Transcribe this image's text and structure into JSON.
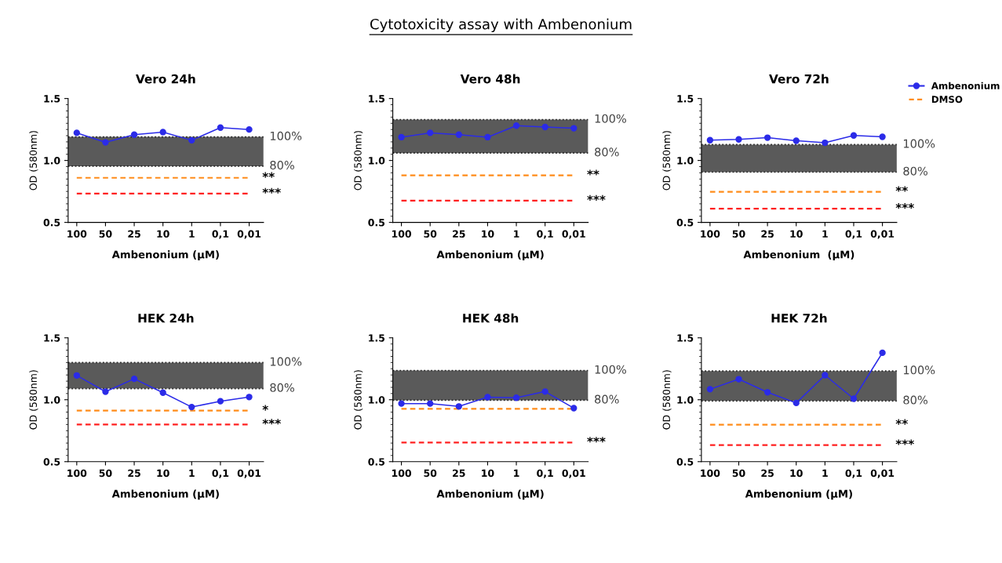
{
  "chart_data": [
    {
      "type": "line",
      "title": "Vero 24h",
      "xlabel": "Ambenonium (µM)",
      "ylabel": "OD (580nm)",
      "categories": [
        "100",
        "50",
        "25",
        "10",
        "1",
        "0,1",
        "0,01"
      ],
      "ylim": [
        0.5,
        1.5
      ],
      "yticks": [
        {
          "value": 0.5,
          "label": "0.5"
        },
        {
          "value": 1.0,
          "label": "1.0"
        },
        {
          "value": 1.5,
          "label": "1.5"
        }
      ],
      "marker": "circle",
      "series": [
        {
          "color": "#2b2be8",
          "values": [
            1.223,
            1.146,
            1.208,
            1.229,
            1.163,
            1.265,
            1.25
          ]
        },
        {
          "type": "line",
          "color": "#ff8c1a",
          "line_style": "dashed",
          "marker": "none",
          "values": [
            0.86,
            0.86,
            0.86,
            0.86,
            0.86,
            0.86,
            0.86
          ]
        },
        {
          "type": "line",
          "color": "#ff2020",
          "line_style": "dashed",
          "marker": "none",
          "values": [
            0.733,
            0.733,
            0.733,
            0.733,
            0.733,
            0.733,
            0.733
          ]
        }
      ],
      "bands": [
        {
          "axis": "y",
          "from": 0.954,
          "to": 1.19,
          "color": "#5a5a5a"
        }
      ],
      "ref_lines": [
        {
          "axis": "y",
          "value": 1.19,
          "color": "#222222",
          "line_style": "dotted"
        },
        {
          "axis": "y",
          "value": 0.954,
          "color": "#222222",
          "line_style": "dotted"
        }
      ],
      "annotations": [
        "Cytotoxicity assay with Ambenonium",
        "100%",
        "80%",
        {
          "text": "**",
          "x": "0,01",
          "y": 0.86
        },
        {
          "text": "***",
          "x": "0,01",
          "y": 0.733
        }
      ]
    },
    {
      "type": "line",
      "title": "Vero 48h",
      "xlabel": "Ambenonium (µM)",
      "ylabel": "OD (580nm)",
      "categories": [
        "100",
        "50",
        "25",
        "10",
        "1",
        "0,1",
        "0,01"
      ],
      "ylim": [
        0.5,
        1.5
      ],
      "yticks": [
        {
          "value": 0.5,
          "label": "0.5"
        },
        {
          "value": 1.0,
          "label": "1.0"
        },
        {
          "value": 1.5,
          "label": "1.5"
        }
      ],
      "marker": "circle",
      "series": [
        {
          "color": "#2b2be8",
          "values": [
            1.188,
            1.223,
            1.208,
            1.188,
            1.281,
            1.27,
            1.26
          ]
        },
        {
          "type": "line",
          "color": "#ff8c1a",
          "line_style": "dashed",
          "marker": "none",
          "values": [
            0.88,
            0.88,
            0.88,
            0.88,
            0.88,
            0.88,
            0.88
          ]
        },
        {
          "type": "line",
          "color": "#ff2020",
          "line_style": "dashed",
          "marker": "none",
          "values": [
            0.675,
            0.675,
            0.675,
            0.675,
            0.675,
            0.675,
            0.675
          ]
        }
      ],
      "bands": [
        {
          "axis": "y",
          "from": 1.06,
          "to": 1.33,
          "color": "#5a5a5a"
        }
      ],
      "ref_lines": [
        {
          "axis": "y",
          "value": 1.33,
          "color": "#222222",
          "line_style": "dotted"
        },
        {
          "axis": "y",
          "value": 1.06,
          "color": "#222222",
          "line_style": "dotted"
        }
      ],
      "annotations": [
        "100%",
        "80%",
        {
          "text": "**",
          "x": "0,01",
          "y": 0.88
        },
        {
          "text": "***",
          "x": "0,01",
          "y": 0.675
        }
      ]
    },
    {
      "type": "line",
      "title": "Vero 72h",
      "xlabel": "Ambenonium  (µM)",
      "ylabel": "OD (580nm)",
      "categories": [
        "100",
        "50",
        "25",
        "10",
        "1",
        "0,1",
        "0,01"
      ],
      "ylim": [
        0.5,
        1.5
      ],
      "yticks": [
        {
          "value": 0.5,
          "label": "0.5"
        },
        {
          "value": 1.0,
          "label": "1.0"
        },
        {
          "value": 1.5,
          "label": "1.5"
        }
      ],
      "marker": "circle",
      "legend": "right",
      "series": [
        {
          "name": "Ambenonium",
          "color": "#2b2be8",
          "values": [
            1.164,
            1.17,
            1.184,
            1.159,
            1.143,
            1.202,
            1.191
          ]
        },
        {
          "type": "line",
          "color": "#ff2020",
          "line_style": "dashed",
          "marker": "none",
          "values": [
            0.61,
            0.61,
            0.61,
            0.61,
            0.61,
            0.61,
            0.61
          ]
        },
        {
          "name": "DMSO",
          "type": "line",
          "color": "#ff8c1a",
          "line_style": "dashed",
          "marker": "none",
          "values": [
            0.747,
            0.747,
            0.747,
            0.747,
            0.747,
            0.747,
            0.747
          ]
        }
      ],
      "bands": [
        {
          "axis": "y",
          "from": 0.906,
          "to": 1.128,
          "color": "#5a5a5a"
        }
      ],
      "ref_lines": [
        {
          "axis": "y",
          "value": 1.128,
          "color": "#222222",
          "line_style": "dotted"
        },
        {
          "axis": "y",
          "value": 0.906,
          "color": "#222222",
          "line_style": "dotted"
        }
      ],
      "annotations": [
        "100%",
        "80%",
        {
          "text": "**",
          "x": "0,01",
          "y": 0.747
        },
        {
          "text": "***",
          "x": "0,01",
          "y": 0.61
        }
      ]
    },
    {
      "type": "line",
      "title": "HEK 24h",
      "xlabel": "Ambenonium (µM)",
      "ylabel": "OD (580nm)",
      "categories": [
        "100",
        "50",
        "25",
        "10",
        "1",
        "0,1",
        "0,01"
      ],
      "ylim": [
        0.5,
        1.5
      ],
      "yticks": [
        {
          "value": 0.5,
          "label": "0.5"
        },
        {
          "value": 1.0,
          "label": "1.0"
        },
        {
          "value": 1.5,
          "label": "1.5"
        }
      ],
      "marker": "circle",
      "series": [
        {
          "color": "#2b2be8",
          "values": [
            1.196,
            1.065,
            1.169,
            1.057,
            0.941,
            0.988,
            1.022
          ]
        },
        {
          "type": "line",
          "color": "#ff8c1a",
          "line_style": "dashed",
          "marker": "none",
          "values": [
            0.912,
            0.912,
            0.912,
            0.912,
            0.912,
            0.912,
            0.912
          ]
        },
        {
          "type": "line",
          "color": "#ff2020",
          "line_style": "dashed",
          "marker": "none",
          "values": [
            0.8,
            0.8,
            0.8,
            0.8,
            0.8,
            0.8,
            0.8
          ]
        }
      ],
      "bands": [
        {
          "axis": "y",
          "from": 1.09,
          "to": 1.3,
          "color": "#5a5a5a"
        }
      ],
      "ref_lines": [
        {
          "axis": "y",
          "value": 1.3,
          "color": "#222222",
          "line_style": "dotted"
        },
        {
          "axis": "y",
          "value": 1.09,
          "color": "#222222",
          "line_style": "dotted"
        }
      ],
      "annotations": [
        "100%",
        "80%",
        {
          "text": "*",
          "x": "0,01",
          "y": 0.912
        },
        {
          "text": "***",
          "x": "0,01",
          "y": 0.8
        }
      ]
    },
    {
      "type": "line",
      "title": "HEK 48h",
      "xlabel": "Ambenonium (µM)",
      "ylabel": "OD (580nm)",
      "categories": [
        "100",
        "50",
        "25",
        "10",
        "1",
        "0,1",
        "0,01"
      ],
      "ylim": [
        0.5,
        1.5
      ],
      "yticks": [
        {
          "value": 0.5,
          "label": "0.5"
        },
        {
          "value": 1.0,
          "label": "1.0"
        },
        {
          "value": 1.5,
          "label": "1.5"
        }
      ],
      "marker": "circle",
      "series": [
        {
          "color": "#2b2be8",
          "values": [
            0.969,
            0.969,
            0.946,
            1.021,
            1.016,
            1.066,
            0.932
          ]
        },
        {
          "type": "line",
          "color": "#ff8c1a",
          "line_style": "dashed",
          "marker": "none",
          "values": [
            0.926,
            0.926,
            0.926,
            0.926,
            0.926,
            0.926,
            0.926
          ]
        },
        {
          "type": "line",
          "color": "#ff2020",
          "line_style": "dashed",
          "marker": "none",
          "values": [
            0.655,
            0.655,
            0.655,
            0.655,
            0.655,
            0.655,
            0.655
          ]
        }
      ],
      "bands": [
        {
          "axis": "y",
          "from": 0.996,
          "to": 1.236,
          "color": "#5a5a5a"
        }
      ],
      "ref_lines": [
        {
          "axis": "y",
          "value": 1.236,
          "color": "#222222",
          "line_style": "dotted"
        },
        {
          "axis": "y",
          "value": 0.996,
          "color": "#222222",
          "line_style": "dotted"
        }
      ],
      "annotations": [
        "100%",
        "80%",
        {
          "text": "***",
          "x": "0,01",
          "y": 0.655
        }
      ]
    },
    {
      "type": "line",
      "title": "HEK 72h",
      "xlabel": "Ambenonium (µM)",
      "ylabel": "OD (580nm)",
      "categories": [
        "100",
        "50",
        "25",
        "10",
        "1",
        "0,1",
        "0,01"
      ],
      "ylim": [
        0.5,
        1.5
      ],
      "yticks": [
        {
          "value": 0.5,
          "label": "0.5"
        },
        {
          "value": 1.0,
          "label": "1.0"
        },
        {
          "value": 1.5,
          "label": "1.5"
        }
      ],
      "marker": "circle",
      "series": [
        {
          "color": "#2b2be8",
          "values": [
            1.085,
            1.166,
            1.06,
            0.974,
            1.198,
            1.008,
            1.379
          ]
        },
        {
          "type": "line",
          "color": "#ff8c1a",
          "line_style": "dashed",
          "marker": "none",
          "values": [
            0.798,
            0.798,
            0.798,
            0.798,
            0.798,
            0.798,
            0.798
          ]
        },
        {
          "type": "line",
          "color": "#ff2020",
          "line_style": "dashed",
          "marker": "none",
          "values": [
            0.634,
            0.634,
            0.634,
            0.634,
            0.634,
            0.634,
            0.634
          ]
        }
      ],
      "bands": [
        {
          "axis": "y",
          "from": 0.99,
          "to": 1.232,
          "color": "#5a5a5a"
        }
      ],
      "ref_lines": [
        {
          "axis": "y",
          "value": 1.232,
          "color": "#222222",
          "line_style": "dotted"
        },
        {
          "axis": "y",
          "value": 0.99,
          "color": "#222222",
          "line_style": "dotted"
        }
      ],
      "annotations": [
        "100%",
        "80%",
        {
          "text": "**",
          "x": "0,01",
          "y": 0.798
        },
        {
          "text": "***",
          "x": "0,01",
          "y": 0.634
        }
      ]
    }
  ]
}
